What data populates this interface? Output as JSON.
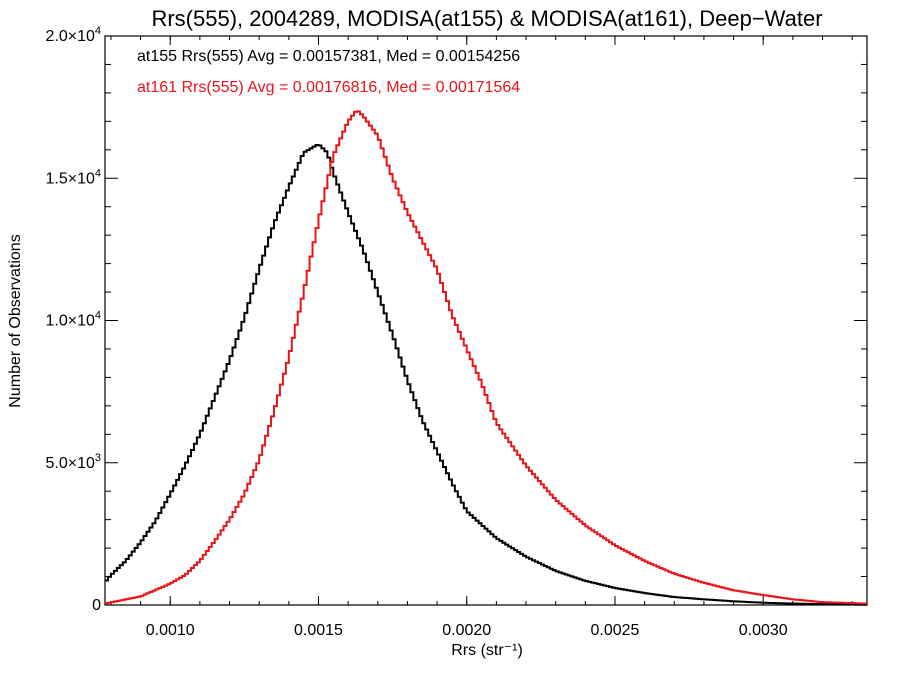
{
  "chart_data": {
    "type": "line",
    "title": "Rrs(555), 2004289, MODISA(at155) & MODISA(at161), Deep−Water",
    "xlabel": "Rrs (str⁻¹)",
    "ylabel": "Number of Observations",
    "xlim": [
      0.00078,
      0.00335
    ],
    "ylim": [
      0,
      20000
    ],
    "xticks": [
      {
        "value": 0.001,
        "label": "0.0010"
      },
      {
        "value": 0.0015,
        "label": "0.0015"
      },
      {
        "value": 0.002,
        "label": "0.0020"
      },
      {
        "value": 0.0025,
        "label": "0.0025"
      },
      {
        "value": 0.003,
        "label": "0.0030"
      }
    ],
    "yticks": [
      {
        "value": 0,
        "mantissa": "0",
        "exp": ""
      },
      {
        "value": 5000,
        "mantissa": "5.0×10",
        "exp": "3"
      },
      {
        "value": 10000,
        "mantissa": "1.0×10",
        "exp": "4"
      },
      {
        "value": 15000,
        "mantissa": "1.5×10",
        "exp": "4"
      },
      {
        "value": 20000,
        "mantissa": "2.0×10",
        "exp": "4"
      }
    ],
    "grid": false,
    "annotations": [
      {
        "text": "at155 Rrs(555) Avg = 0.00157381, Med = 0.00154256",
        "color": "#000000"
      },
      {
        "text": "at161 Rrs(555) Avg = 0.00176816, Med = 0.00171564",
        "color": "#e8141a"
      }
    ],
    "series": [
      {
        "color": "#000000",
        "x": [
          0.00078,
          0.0008,
          0.00085,
          0.0009,
          0.00095,
          0.001,
          0.00105,
          0.0011,
          0.00115,
          0.0012,
          0.00125,
          0.0013,
          0.00135,
          0.0014,
          0.00145,
          0.0015,
          0.00153,
          0.00155,
          0.0016,
          0.00165,
          0.0017,
          0.00175,
          0.0018,
          0.00185,
          0.0019,
          0.00195,
          0.002,
          0.0021,
          0.0022,
          0.0023,
          0.0024,
          0.0025,
          0.0026,
          0.0027,
          0.0028,
          0.0029,
          0.003,
          0.0031,
          0.0032,
          0.00335
        ],
        "y": [
          800,
          1050,
          1550,
          2200,
          2950,
          3900,
          4900,
          6000,
          7300,
          8600,
          10100,
          11800,
          13400,
          14700,
          15900,
          16200,
          15900,
          15200,
          13800,
          12500,
          11000,
          9500,
          7900,
          6500,
          5400,
          4300,
          3300,
          2350,
          1700,
          1200,
          850,
          600,
          420,
          280,
          200,
          130,
          80,
          50,
          30,
          10
        ]
      },
      {
        "color": "#e8141a",
        "x": [
          0.00078,
          0.0009,
          0.001,
          0.00105,
          0.0011,
          0.00115,
          0.0012,
          0.00125,
          0.0013,
          0.00135,
          0.0014,
          0.00145,
          0.0015,
          0.00155,
          0.0016,
          0.00163,
          0.00165,
          0.0017,
          0.00175,
          0.0018,
          0.00185,
          0.0019,
          0.00195,
          0.002,
          0.00205,
          0.0021,
          0.0022,
          0.0023,
          0.0024,
          0.0025,
          0.0026,
          0.0027,
          0.0028,
          0.0029,
          0.003,
          0.0031,
          0.0032,
          0.00335
        ],
        "y": [
          50,
          300,
          750,
          1050,
          1550,
          2250,
          3000,
          3900,
          5100,
          6800,
          8700,
          11000,
          13500,
          15800,
          17000,
          17400,
          17200,
          16500,
          15000,
          13800,
          12800,
          11800,
          10200,
          9000,
          7800,
          6400,
          4900,
          3700,
          2800,
          2100,
          1550,
          1100,
          780,
          520,
          350,
          200,
          100,
          50
        ]
      }
    ]
  }
}
